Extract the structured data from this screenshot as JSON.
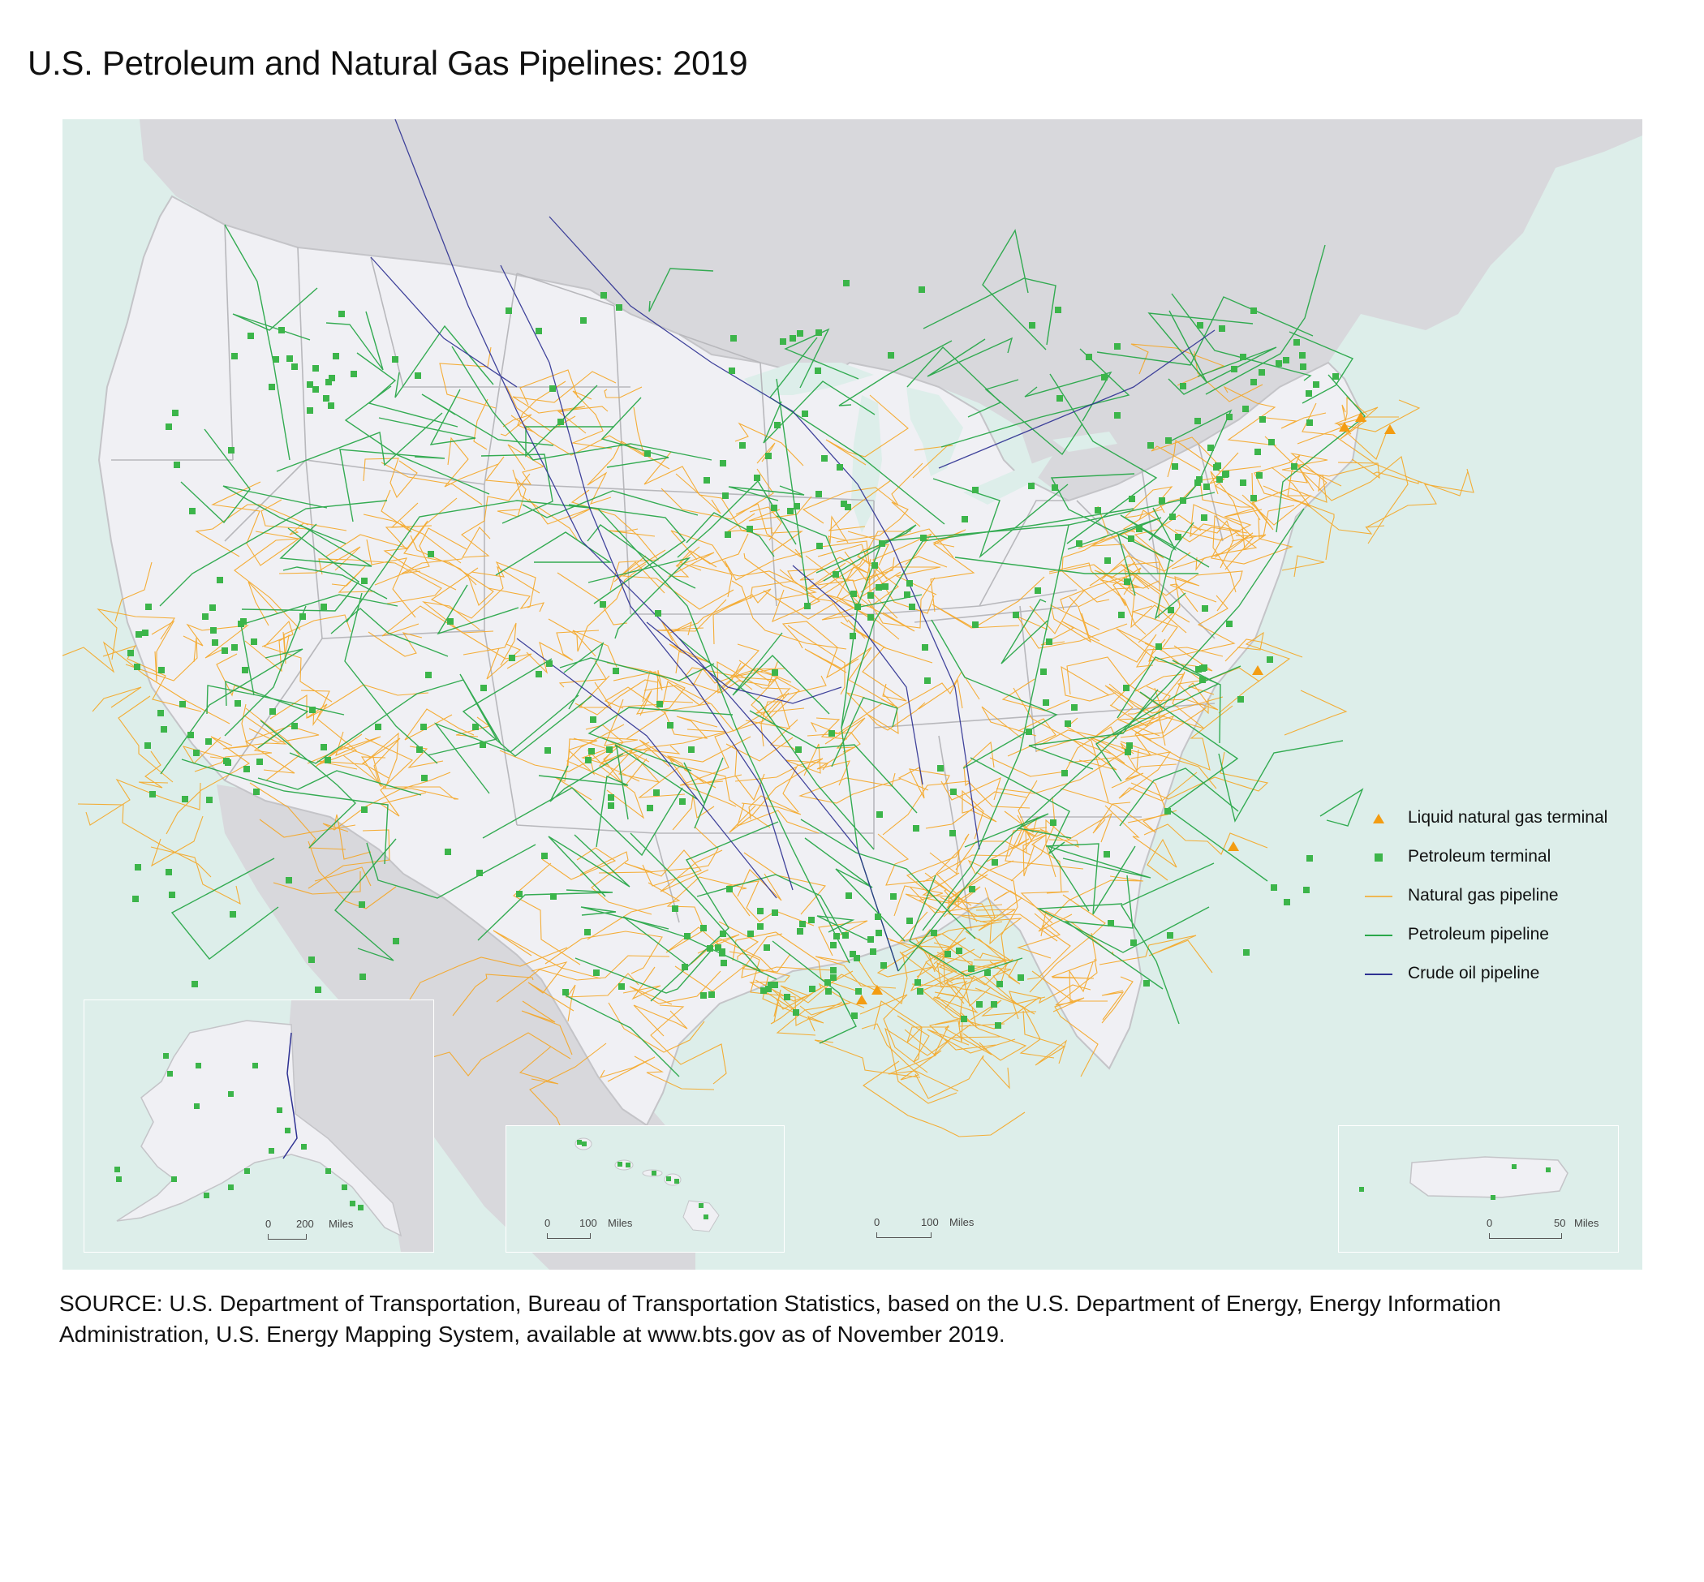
{
  "title": "U.S. Petroleum and Natural Gas Pipelines: 2019",
  "colors": {
    "water": "#ddeeea",
    "land_us": "#f0f0f4",
    "land_other": "#d8d8dc",
    "state_border": "#b8b8bc",
    "natural_gas": "#f5a623",
    "petroleum_pipeline": "#2aa84a",
    "crude_oil": "#2e3192",
    "petroleum_terminal": "#3cb54a",
    "lng_terminal": "#f39c12"
  },
  "legend": [
    {
      "key": "lng",
      "label": "Liquid natural gas terminal",
      "icon": "triangle-icon"
    },
    {
      "key": "terminal",
      "label": "Petroleum terminal",
      "icon": "square-icon"
    },
    {
      "key": "gas",
      "label": "Natural gas pipeline",
      "icon": "orange-line-icon"
    },
    {
      "key": "petro",
      "label": "Petroleum pipeline",
      "icon": "green-line-icon"
    },
    {
      "key": "crude",
      "label": "Crude oil pipeline",
      "icon": "blue-line-icon"
    }
  ],
  "scales": {
    "alaska": {
      "zero": "0",
      "value": "200",
      "unit": "Miles"
    },
    "hawaii": {
      "zero": "0",
      "value": "100",
      "unit": "Miles"
    },
    "main": {
      "zero": "0",
      "value": "100",
      "unit": "Miles"
    },
    "puerto_rico": {
      "zero": "0",
      "value": "50",
      "unit": "Miles"
    }
  },
  "source": "SOURCE: U.S. Department of Transportation, Bureau of Transportation Statistics, based on the U.S. Department of Energy, Energy Information Administration, U.S. Energy Mapping System, available at www.bts.gov as of November 2019."
}
